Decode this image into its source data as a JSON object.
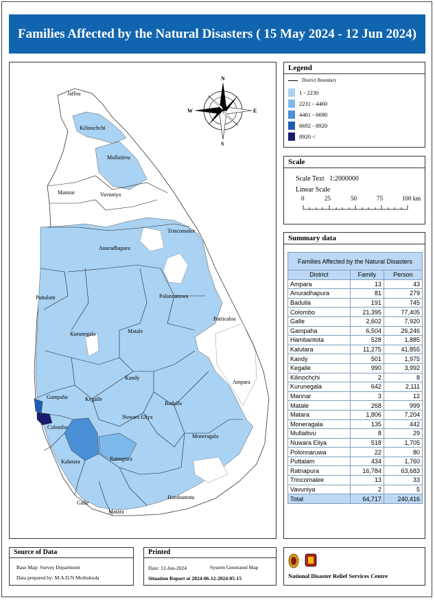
{
  "title": "Families Affected by the Natural Disasters ( 15 May 2024 - 12 Jun 2024)",
  "legend": {
    "heading": "Legend",
    "boundary_label": "District Boundary",
    "classes": [
      {
        "label": "1 - 2230",
        "color": "#a9d2f3"
      },
      {
        "label": "2231 - 4460",
        "color": "#7fb8ea"
      },
      {
        "label": "4461 - 6690",
        "color": "#4b8fd6"
      },
      {
        "label": "6692 - 8920",
        "color": "#1e5cb3"
      },
      {
        "label": "8920 <",
        "color": "#1a1a6e"
      }
    ]
  },
  "scale": {
    "heading": "Scale",
    "scale_text_label": "Scale Text",
    "scale_text_value": "1:2000000",
    "linear_label": "Linear Scale",
    "ticks": [
      "0",
      "25",
      "50",
      "75",
      "100 km"
    ]
  },
  "summary": {
    "heading": "Summary data",
    "table_caption": "Families Affected by the Natural Disasters",
    "columns": [
      "District",
      "Family",
      "Person"
    ],
    "rows": [
      [
        "Ampara",
        "13",
        "43"
      ],
      [
        "Anuradhapura",
        "81",
        "279"
      ],
      [
        "Badulla",
        "191",
        "745"
      ],
      [
        "Colombo",
        "21,395",
        "77,405"
      ],
      [
        "Galle",
        "2,602",
        "7,920"
      ],
      [
        "Gampaha",
        "6,504",
        "26,246"
      ],
      [
        "Hambantota",
        "528",
        "1,885"
      ],
      [
        "Kalutara",
        "11,275",
        "41,855"
      ],
      [
        "Kandy",
        "501",
        "1,975"
      ],
      [
        "Kegalle",
        "990",
        "3,992"
      ],
      [
        "Kilinochchi",
        "2",
        "8"
      ],
      [
        "Kurunegala",
        "642",
        "2,111"
      ],
      [
        "Mannar",
        "3",
        "12"
      ],
      [
        "Matale",
        "268",
        "999"
      ],
      [
        "Matara",
        "1,806",
        "7,204"
      ],
      [
        "Moneragala",
        "135",
        "442"
      ],
      [
        "Mullaitivu",
        "8",
        "29"
      ],
      [
        "Nuwara Eliya",
        "518",
        "1,705"
      ],
      [
        "Polonnaruwa",
        "22",
        "80"
      ],
      [
        "Puttalam",
        "434",
        "1,760"
      ],
      [
        "Ratnapura",
        "16,784",
        "63,683"
      ],
      [
        "Trincomalee",
        "13",
        "33"
      ],
      [
        "Vavuniya",
        "2",
        "5"
      ]
    ],
    "total": [
      "Total",
      "64,717",
      "240,416"
    ]
  },
  "map": {
    "districts": [
      "Jaffna",
      "Kilinochchi",
      "Mullaitivu",
      "Mannar",
      "Vavuniya",
      "Trincomalee",
      "Anuradhapura",
      "Puttalam",
      "Polonnaruwa",
      "Batticaloa",
      "Kurunegala",
      "Matale",
      "Kandy",
      "Ampara",
      "Gampaha",
      "Kegalle",
      "Badulla",
      "Nuwara Eliya",
      "Colombo",
      "Moneragala",
      "Kalutara",
      "Ratnapura",
      "Hambantota",
      "Galle",
      "Matara"
    ],
    "compass": [
      "N",
      "E",
      "S",
      "W"
    ]
  },
  "source": {
    "heading": "Source of Data",
    "base_map": "Base Map: Survey Department",
    "prepared_by": "Data prepared by: M.A.D.N Muthukuda"
  },
  "printed": {
    "heading": "Printed",
    "date": "Date: 12-Jun-2024",
    "system": "System Generated Map",
    "situation": "Situation Report at 2024-06-12-2024-05-15"
  },
  "agency": {
    "name": "National Disaster Relief Services Centre"
  }
}
